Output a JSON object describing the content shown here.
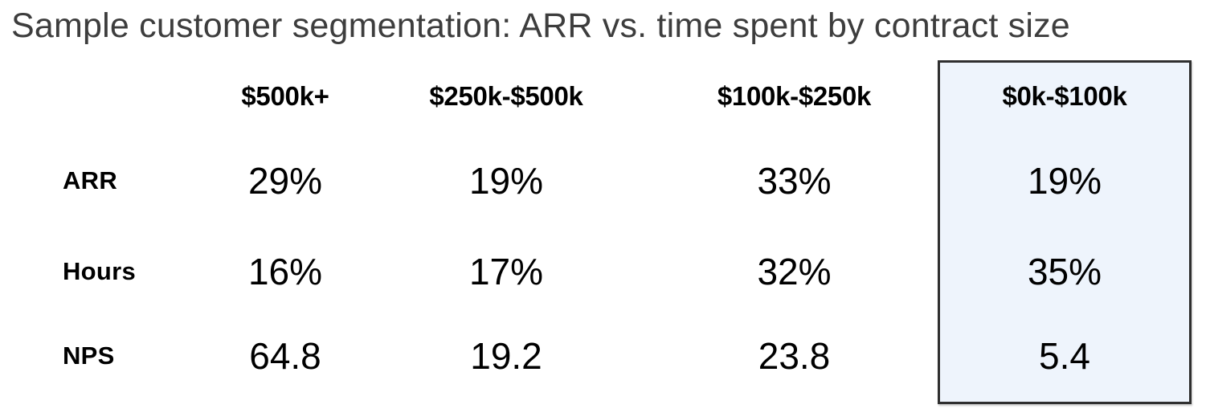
{
  "title": "Sample customer segmentation: ARR vs. time spent by contract size",
  "colors": {
    "highlight_fill": "#eef4fc",
    "highlight_border": "#2f2f2f",
    "title_text": "#3d3d3d",
    "text": "#000000",
    "page_bg": "#ffffff"
  },
  "table": {
    "columns": [
      "$500k+",
      "$250k-$500k",
      "$100k-$250k",
      "$0k-$100k"
    ],
    "highlighted_column": "$0k-$100k",
    "rows": [
      {
        "label": "ARR",
        "values": [
          "29%",
          "19%",
          "33%",
          "19%"
        ]
      },
      {
        "label": "Hours",
        "values": [
          "16%",
          "17%",
          "32%",
          "35%"
        ]
      },
      {
        "label": "NPS",
        "values": [
          "64.8",
          "19.2",
          "23.8",
          "5.4"
        ]
      }
    ]
  },
  "chart_data": {
    "type": "table",
    "title": "Sample customer segmentation: ARR vs. time spent by contract size",
    "categories": [
      "$500k+",
      "$250k-$500k",
      "$100k-$250k",
      "$0k-$100k"
    ],
    "series": [
      {
        "name": "ARR",
        "values": [
          29,
          19,
          33,
          19
        ],
        "unit": "%"
      },
      {
        "name": "Hours",
        "values": [
          16,
          17,
          32,
          35
        ],
        "unit": "%"
      },
      {
        "name": "NPS",
        "values": [
          64.8,
          19.2,
          23.8,
          5.4
        ],
        "unit": ""
      }
    ],
    "highlighted_category": "$0k-$100k",
    "layout": {
      "grid": false,
      "legend": "none",
      "highlight_style": "light-blue box with dark border around last column"
    }
  }
}
